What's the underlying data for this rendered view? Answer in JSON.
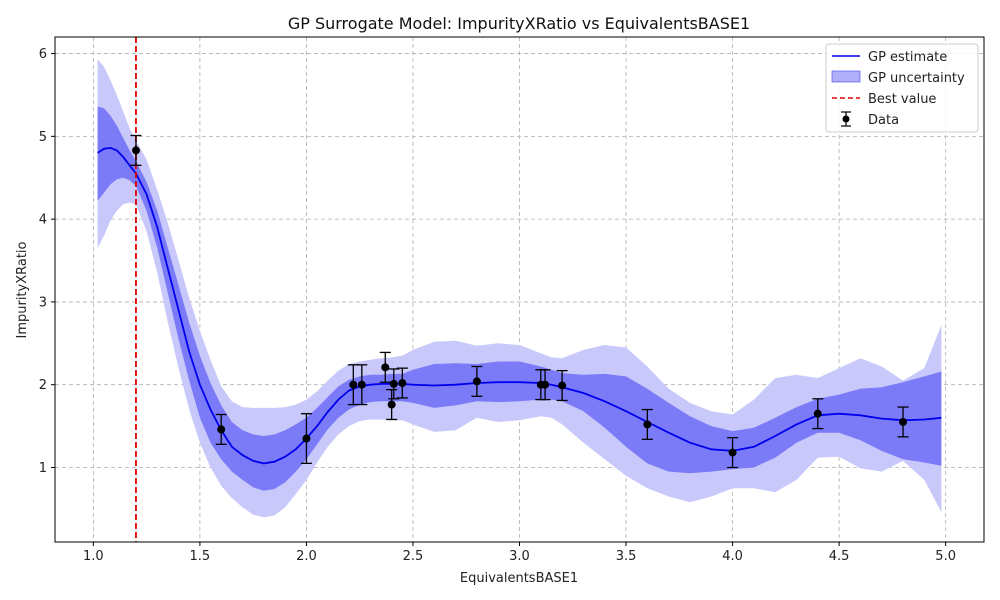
{
  "chart_data": {
    "type": "line",
    "title": "GP Surrogate Model: ImpurityXRatio vs EquivalentsBASE1",
    "xlabel": "EquivalentsBASE1",
    "ylabel": "ImpurityXRatio",
    "xlim": [
      0.82,
      5.18
    ],
    "ylim": [
      0.1,
      6.2
    ],
    "xticks": [
      1.0,
      1.5,
      2.0,
      2.5,
      3.0,
      3.5,
      4.0,
      4.5,
      5.0
    ],
    "xtick_labels": [
      "1.0",
      "1.5",
      "2.0",
      "2.5",
      "3.0",
      "3.5",
      "4.0",
      "4.5",
      "5.0"
    ],
    "yticks": [
      1,
      2,
      3,
      4,
      5,
      6
    ],
    "ytick_labels": [
      "1",
      "2",
      "3",
      "4",
      "5",
      "6"
    ],
    "grid": true,
    "legend_position": "top-right",
    "colors": {
      "gp_line": "#0000ee",
      "band_inner": "#7b7bf7",
      "band_outer": "#c8c8fb",
      "best_line": "#dd0000",
      "data": "#000000"
    },
    "legend": [
      {
        "label": "GP estimate",
        "kind": "line"
      },
      {
        "label": "GP uncertainty",
        "kind": "band"
      },
      {
        "label": "Best value",
        "kind": "dashed"
      },
      {
        "label": "Data",
        "kind": "errorbar"
      }
    ],
    "best_value_x": 1.2,
    "gp_estimate": {
      "x": [
        1.02,
        1.05,
        1.08,
        1.11,
        1.14,
        1.17,
        1.2,
        1.25,
        1.3,
        1.35,
        1.4,
        1.45,
        1.5,
        1.55,
        1.6,
        1.65,
        1.7,
        1.75,
        1.8,
        1.85,
        1.9,
        1.95,
        2.0,
        2.05,
        2.1,
        2.15,
        2.2,
        2.25,
        2.3,
        2.35,
        2.4,
        2.45,
        2.5,
        2.6,
        2.7,
        2.8,
        2.9,
        3.0,
        3.1,
        3.15,
        3.2,
        3.3,
        3.4,
        3.5,
        3.6,
        3.7,
        3.8,
        3.9,
        4.0,
        4.1,
        4.2,
        4.3,
        4.4,
        4.5,
        4.6,
        4.7,
        4.8,
        4.9,
        4.98
      ],
      "y": [
        4.8,
        4.85,
        4.86,
        4.83,
        4.75,
        4.65,
        4.55,
        4.3,
        3.9,
        3.4,
        2.9,
        2.4,
        2.0,
        1.7,
        1.45,
        1.25,
        1.15,
        1.08,
        1.05,
        1.07,
        1.13,
        1.22,
        1.35,
        1.5,
        1.67,
        1.82,
        1.93,
        1.98,
        2.0,
        2.01,
        2.01,
        2.01,
        2.0,
        1.99,
        2.0,
        2.02,
        2.03,
        2.03,
        2.02,
        2.0,
        1.97,
        1.9,
        1.8,
        1.68,
        1.55,
        1.42,
        1.3,
        1.22,
        1.2,
        1.25,
        1.38,
        1.52,
        1.63,
        1.65,
        1.63,
        1.59,
        1.57,
        1.58,
        1.6
      ],
      "lower_inner": [
        4.22,
        4.32,
        4.42,
        4.48,
        4.5,
        4.47,
        4.4,
        4.1,
        3.65,
        3.1,
        2.55,
        2.05,
        1.6,
        1.3,
        1.1,
        0.95,
        0.85,
        0.76,
        0.72,
        0.74,
        0.82,
        0.95,
        1.1,
        1.28,
        1.46,
        1.6,
        1.7,
        1.76,
        1.79,
        1.8,
        1.8,
        1.8,
        1.78,
        1.72,
        1.75,
        1.8,
        1.79,
        1.8,
        1.82,
        1.82,
        1.8,
        1.68,
        1.48,
        1.25,
        1.05,
        0.95,
        0.93,
        0.95,
        0.98,
        1.0,
        1.12,
        1.3,
        1.42,
        1.42,
        1.33,
        1.2,
        1.1,
        1.06,
        1.02
      ],
      "upper_inner": [
        5.36,
        5.34,
        5.25,
        5.13,
        4.98,
        4.83,
        4.7,
        4.45,
        4.1,
        3.65,
        3.2,
        2.75,
        2.35,
        2.02,
        1.75,
        1.55,
        1.45,
        1.4,
        1.38,
        1.4,
        1.45,
        1.52,
        1.6,
        1.72,
        1.85,
        1.98,
        2.06,
        2.1,
        2.12,
        2.12,
        2.13,
        2.13,
        2.18,
        2.25,
        2.26,
        2.25,
        2.28,
        2.28,
        2.22,
        2.18,
        2.14,
        2.12,
        2.13,
        2.1,
        1.95,
        1.78,
        1.62,
        1.5,
        1.44,
        1.48,
        1.6,
        1.73,
        1.83,
        1.88,
        1.95,
        1.97,
        2.03,
        2.1,
        2.16
      ],
      "lower_outer": [
        3.65,
        3.8,
        3.98,
        4.1,
        4.18,
        4.2,
        4.18,
        3.85,
        3.35,
        2.75,
        2.2,
        1.7,
        1.3,
        1.0,
        0.78,
        0.63,
        0.52,
        0.43,
        0.4,
        0.42,
        0.52,
        0.68,
        0.85,
        1.06,
        1.25,
        1.4,
        1.5,
        1.56,
        1.58,
        1.58,
        1.57,
        1.57,
        1.52,
        1.43,
        1.45,
        1.6,
        1.55,
        1.57,
        1.62,
        1.6,
        1.52,
        1.3,
        1.1,
        0.9,
        0.75,
        0.65,
        0.58,
        0.65,
        0.75,
        0.75,
        0.7,
        0.85,
        1.12,
        1.13,
        0.99,
        0.95,
        1.08,
        0.85,
        0.46
      ],
      "upper_outer": [
        5.93,
        5.84,
        5.68,
        5.5,
        5.3,
        5.1,
        4.95,
        4.72,
        4.35,
        3.95,
        3.5,
        3.05,
        2.65,
        2.3,
        1.98,
        1.8,
        1.73,
        1.72,
        1.72,
        1.72,
        1.73,
        1.76,
        1.82,
        1.92,
        2.05,
        2.17,
        2.25,
        2.28,
        2.3,
        2.32,
        2.33,
        2.35,
        2.42,
        2.52,
        2.53,
        2.47,
        2.5,
        2.48,
        2.38,
        2.33,
        2.32,
        2.42,
        2.48,
        2.45,
        2.22,
        1.95,
        1.78,
        1.68,
        1.64,
        1.82,
        2.08,
        2.12,
        2.08,
        2.2,
        2.32,
        2.22,
        2.05,
        2.2,
        2.72
      ]
    },
    "data_points": [
      {
        "x": 1.2,
        "y": 4.83,
        "err": 0.18
      },
      {
        "x": 1.6,
        "y": 1.46,
        "err": 0.18
      },
      {
        "x": 2.0,
        "y": 1.35,
        "err": 0.3
      },
      {
        "x": 2.22,
        "y": 2.0,
        "err": 0.24
      },
      {
        "x": 2.26,
        "y": 2.0,
        "err": 0.24
      },
      {
        "x": 2.37,
        "y": 2.21,
        "err": 0.18
      },
      {
        "x": 2.4,
        "y": 1.76,
        "err": 0.18
      },
      {
        "x": 2.41,
        "y": 2.01,
        "err": 0.18
      },
      {
        "x": 2.45,
        "y": 2.02,
        "err": 0.18
      },
      {
        "x": 2.8,
        "y": 2.04,
        "err": 0.18
      },
      {
        "x": 3.1,
        "y": 2.0,
        "err": 0.18
      },
      {
        "x": 3.12,
        "y": 2.0,
        "err": 0.18
      },
      {
        "x": 3.2,
        "y": 1.99,
        "err": 0.18
      },
      {
        "x": 3.6,
        "y": 1.52,
        "err": 0.18
      },
      {
        "x": 4.0,
        "y": 1.18,
        "err": 0.18
      },
      {
        "x": 4.4,
        "y": 1.65,
        "err": 0.18
      },
      {
        "x": 4.8,
        "y": 1.55,
        "err": 0.18
      }
    ]
  }
}
